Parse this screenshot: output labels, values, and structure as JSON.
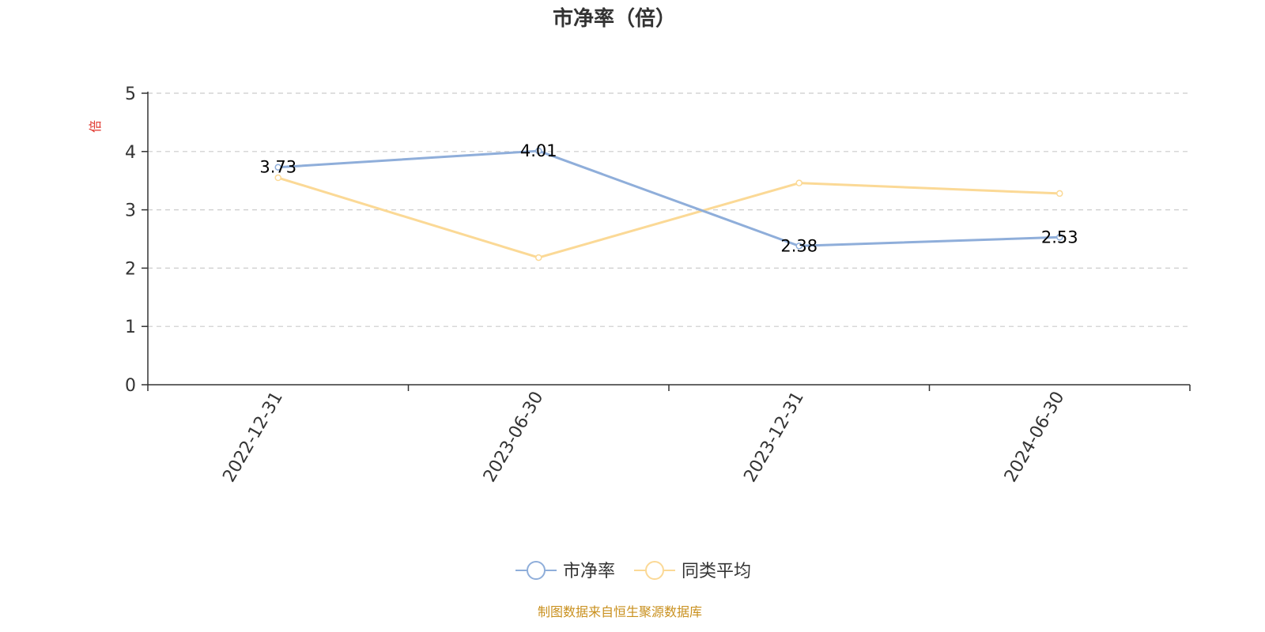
{
  "chart_data": {
    "type": "line",
    "title": "市净率（倍）",
    "ylabel": "倍",
    "xlabel": "",
    "categories": [
      "2022-12-31",
      "2023-06-30",
      "2023-12-31",
      "2024-06-30"
    ],
    "ylim": [
      0,
      5
    ],
    "yticks": [
      0,
      1,
      2,
      3,
      4,
      5
    ],
    "grid": true,
    "legend_position": "bottom-center",
    "series": [
      {
        "name": "市净率",
        "values": [
          3.73,
          4.01,
          2.38,
          2.53
        ],
        "color": "#8FAEDA",
        "show_labels": true
      },
      {
        "name": "同类平均",
        "values": [
          3.55,
          2.18,
          3.46,
          3.28
        ],
        "color": "#FBD996",
        "show_labels": false
      }
    ]
  },
  "colors": {
    "unit_label": "#E0342B",
    "source_note": "#C9901E",
    "grid": "#CCCCCC",
    "axis": "#333333"
  },
  "source_note": "制图数据来自恒生聚源数据库"
}
